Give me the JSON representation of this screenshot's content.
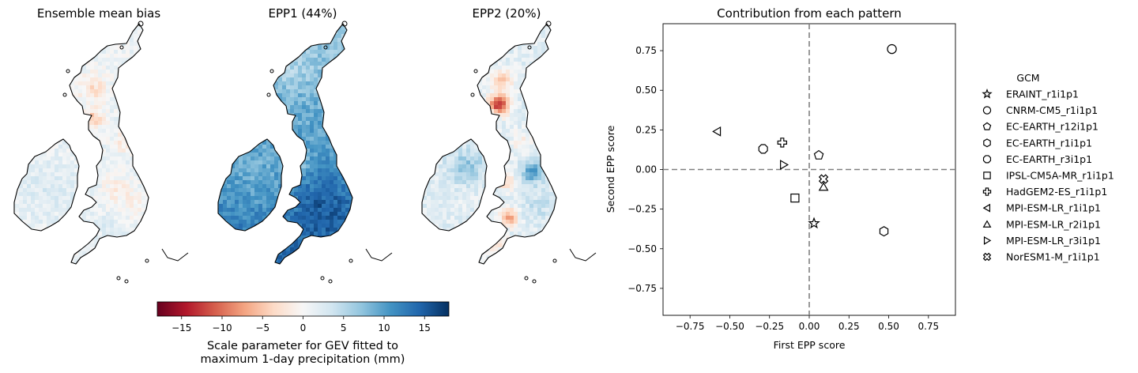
{
  "maps": [
    {
      "title": "Ensemble mean bias",
      "field": "bias"
    },
    {
      "title": "EPP1 (44%)",
      "field": "epp1"
    },
    {
      "title": "EPP2 (20%)",
      "field": "epp2"
    }
  ],
  "colorbar": {
    "colormap": "RdBu",
    "vmin": -18,
    "vmax": 18,
    "ticks": [
      -15,
      -10,
      -5,
      0,
      5,
      10,
      15
    ],
    "tick_labels": [
      "−15",
      "−10",
      "−5",
      "0",
      "5",
      "10",
      "15"
    ],
    "label_line1": "Scale parameter for GEV fitted to",
    "label_line2": "maximum 1-day precipitation (mm)",
    "stops": [
      "#67001f",
      "#b2182b",
      "#d6604d",
      "#f4a582",
      "#fddbc7",
      "#f7f7f7",
      "#d1e5f0",
      "#92c5de",
      "#4393c3",
      "#2166ac",
      "#053061"
    ]
  },
  "chart_data": {
    "type": "scatter",
    "title": "Contribution from each pattern",
    "xlabel": "First EPP score",
    "ylabel": "Second EPP score",
    "xlim": [
      -0.92,
      0.92
    ],
    "ylim": [
      -0.92,
      0.92
    ],
    "xticks": [
      -0.75,
      -0.5,
      -0.25,
      0.0,
      0.25,
      0.5,
      0.75
    ],
    "xtick_labels": [
      "−0.75",
      "−0.50",
      "−0.25",
      "0.00",
      "0.25",
      "0.50",
      "0.75"
    ],
    "yticks": [
      0.75,
      0.5,
      0.25,
      0.0,
      -0.25,
      -0.5,
      -0.75
    ],
    "ytick_labels": [
      "0.75",
      "0.50",
      "0.25",
      "0.00",
      "−0.25",
      "−0.50",
      "−0.75"
    ],
    "reference_lines": {
      "x": 0,
      "y": 0,
      "style": "dashed",
      "color": "#808080"
    },
    "legend_title": "GCM",
    "legend_position": "outside-right",
    "series": [
      {
        "name": "ERAINT_r1i1p1",
        "marker": "star",
        "x": 0.03,
        "y": -0.34
      },
      {
        "name": "CNRM-CM5_r1i1p1",
        "marker": "circle",
        "x": 0.52,
        "y": 0.76
      },
      {
        "name": "EC-EARTH_r12i1p1",
        "marker": "pentagon",
        "x": 0.06,
        "y": 0.09
      },
      {
        "name": "EC-EARTH_r1i1p1",
        "marker": "hexagon",
        "x": 0.47,
        "y": -0.39
      },
      {
        "name": "EC-EARTH_r3i1p1",
        "marker": "octagon",
        "x": -0.29,
        "y": 0.13
      },
      {
        "name": "IPSL-CM5A-MR_r1i1p1",
        "marker": "square",
        "x": -0.09,
        "y": -0.18
      },
      {
        "name": "HadGEM2-ES_r1i1p1",
        "marker": "plus",
        "x": -0.17,
        "y": 0.17
      },
      {
        "name": "MPI-ESM-LR_r1i1p1",
        "marker": "triangle-left",
        "x": -0.58,
        "y": 0.24
      },
      {
        "name": "MPI-ESM-LR_r2i1p1",
        "marker": "triangle-up",
        "x": 0.09,
        "y": -0.11
      },
      {
        "name": "MPI-ESM-LR_r3i1p1",
        "marker": "triangle-right",
        "x": -0.16,
        "y": 0.03
      },
      {
        "name": "NorESM1-M_r1i1p1",
        "marker": "x-filled",
        "x": 0.09,
        "y": -0.06
      }
    ]
  }
}
